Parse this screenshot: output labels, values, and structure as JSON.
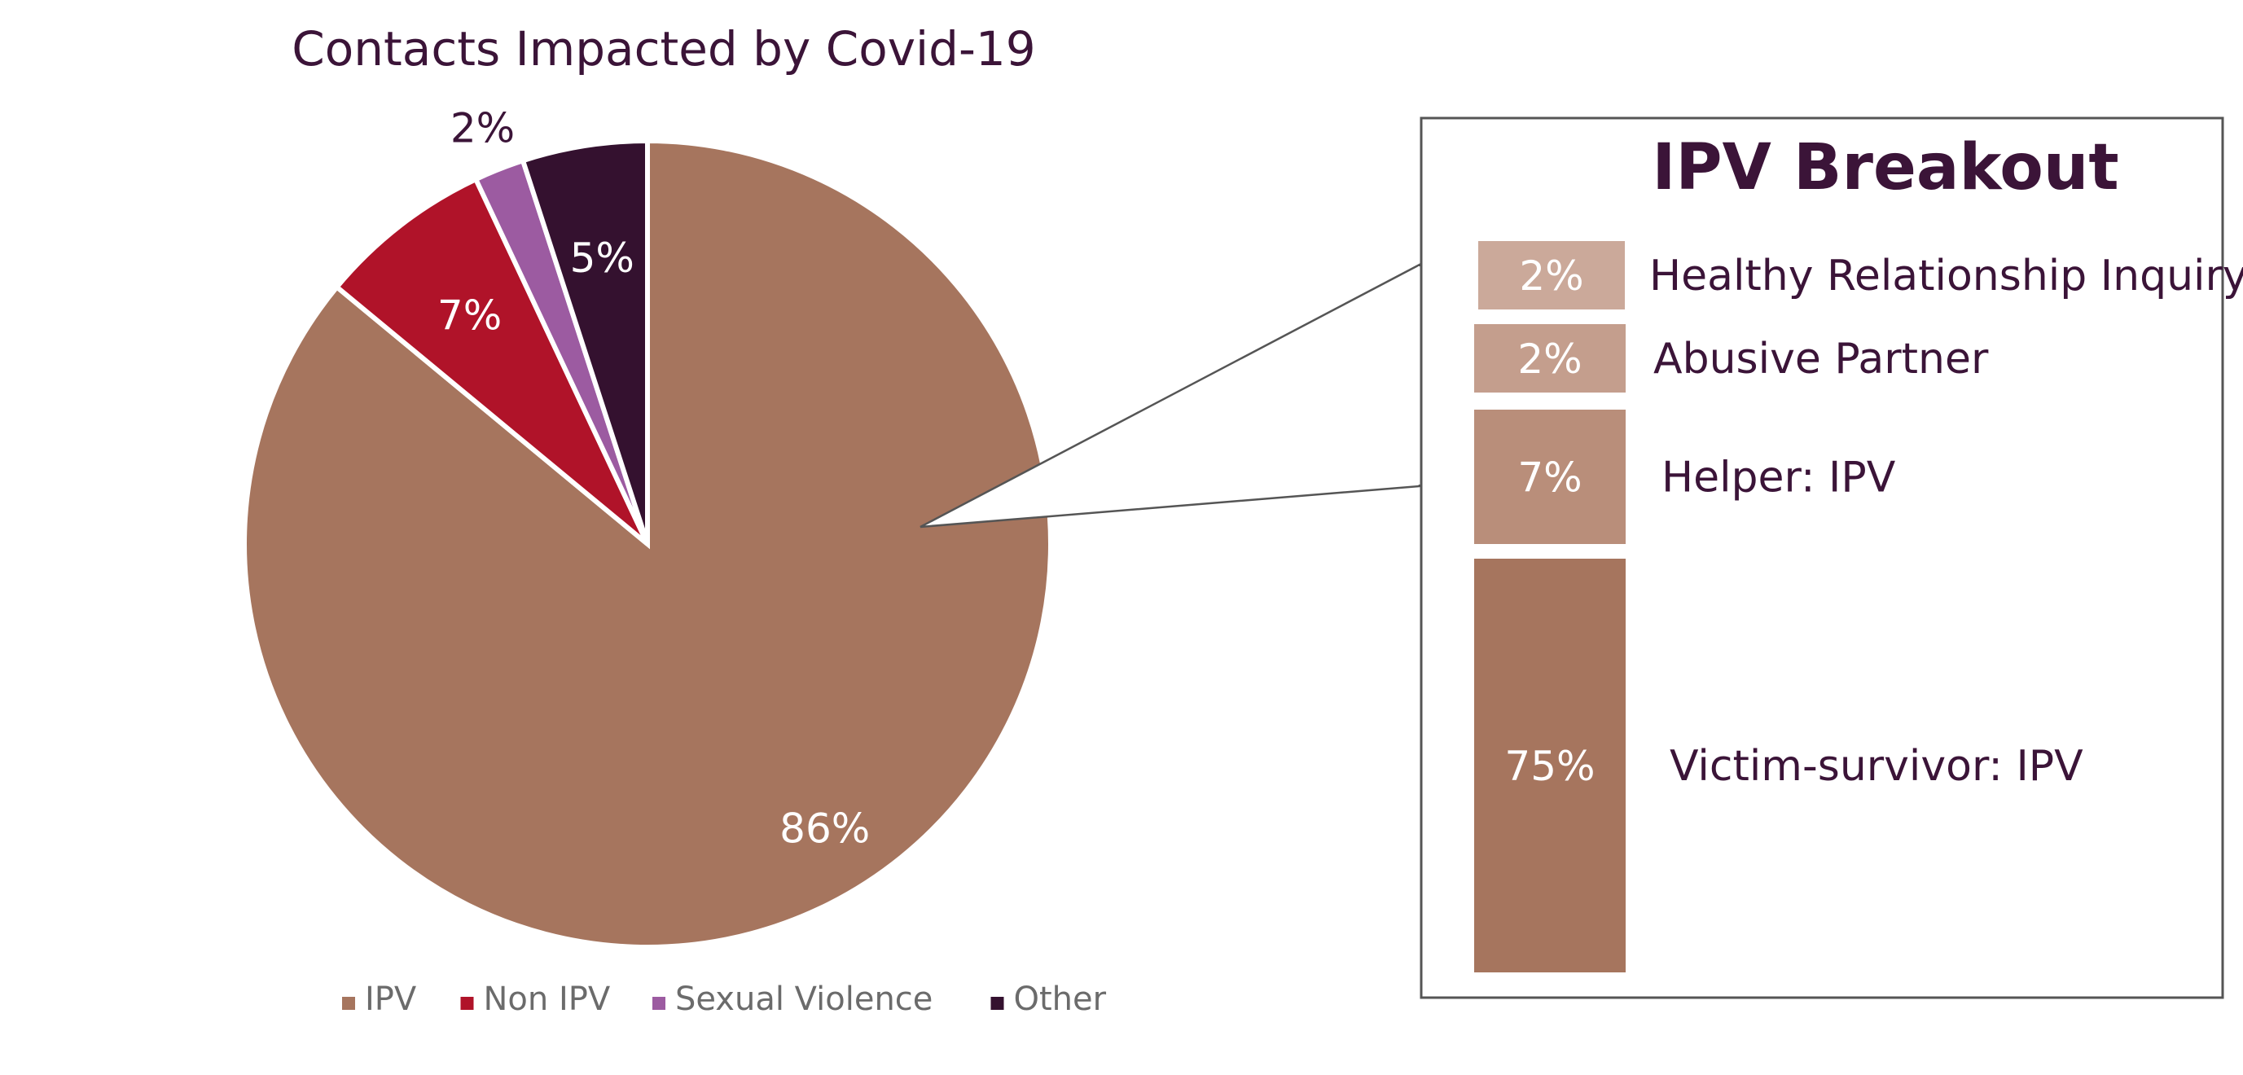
{
  "chart_data": [
    {
      "type": "pie",
      "title": "Contacts Impacted by Covid-19",
      "slices": [
        {
          "label": "IPV",
          "value": 86,
          "display": "86%",
          "color": "#A6755E"
        },
        {
          "label": "Non IPV",
          "value": 7,
          "display": "7%",
          "color": "#B01329"
        },
        {
          "label": "Sexual Violence",
          "value": 2,
          "display": "2%",
          "color": "#9C5BA1"
        },
        {
          "label": "Other",
          "value": 5,
          "display": "5%",
          "color": "#34112F"
        }
      ],
      "legend": {
        "position": "bottom",
        "items": [
          "IPV",
          "Non IPV",
          "Sexual Violence",
          "Other"
        ]
      }
    },
    {
      "type": "bar",
      "stacked": true,
      "title": "IPV Breakout",
      "segments": [
        {
          "label": "Healthy Relationship Inquiry",
          "value": 2,
          "display": "2%",
          "color": "#CBA99A"
        },
        {
          "label": "Abusive Partner",
          "value": 2,
          "display": "2%",
          "color": "#C49E8D"
        },
        {
          "label": "Helper: IPV",
          "value": 7,
          "display": "7%",
          "color": "#B98E7A"
        },
        {
          "label": "Victim-survivor: IPV",
          "value": 75,
          "display": "75%",
          "color": "#A6755E"
        }
      ]
    }
  ],
  "colors": {
    "title_text": "#3B1438",
    "label_text": "#3B1438",
    "legend_text": "#6B6B6B",
    "box_border": "#555555"
  }
}
